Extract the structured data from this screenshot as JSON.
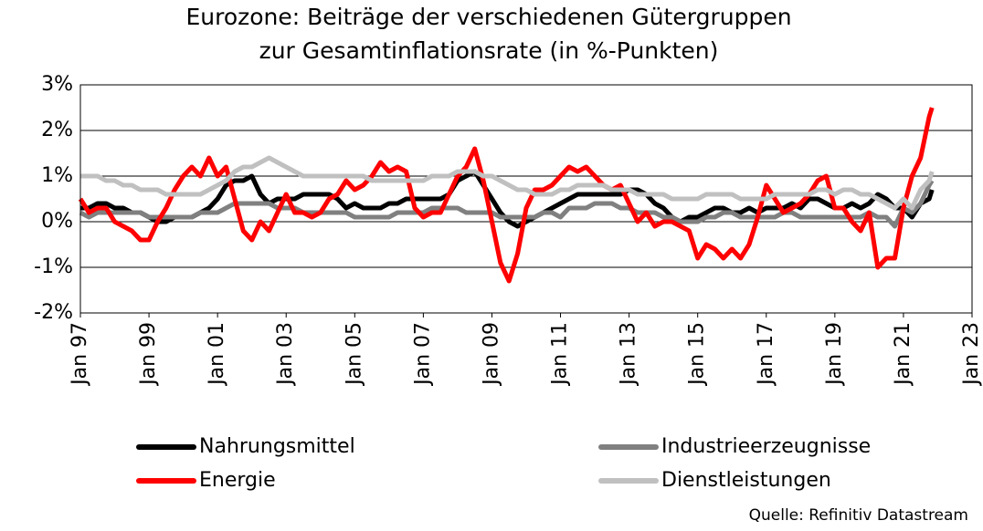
{
  "chart_data": {
    "type": "line",
    "title": [
      "Eurozone: Beiträge der verschiedenen Gütergruppen",
      "zur Gesamtinflationsrate (in %-Punkten)"
    ],
    "source": "Quelle: Refinitiv Datastream",
    "x": [
      "1997-01",
      "1997-04",
      "1997-07",
      "1997-10",
      "1998-01",
      "1998-04",
      "1998-07",
      "1998-10",
      "1999-01",
      "1999-04",
      "1999-07",
      "1999-10",
      "2000-01",
      "2000-04",
      "2000-07",
      "2000-10",
      "2001-01",
      "2001-04",
      "2001-07",
      "2001-10",
      "2002-01",
      "2002-04",
      "2002-07",
      "2002-10",
      "2003-01",
      "2003-04",
      "2003-07",
      "2003-10",
      "2004-01",
      "2004-04",
      "2004-07",
      "2004-10",
      "2005-01",
      "2005-04",
      "2005-07",
      "2005-10",
      "2006-01",
      "2006-04",
      "2006-07",
      "2006-10",
      "2007-01",
      "2007-04",
      "2007-07",
      "2007-10",
      "2008-01",
      "2008-04",
      "2008-07",
      "2008-10",
      "2009-01",
      "2009-04",
      "2009-07",
      "2009-10",
      "2010-01",
      "2010-04",
      "2010-07",
      "2010-10",
      "2011-01",
      "2011-04",
      "2011-07",
      "2011-10",
      "2012-01",
      "2012-04",
      "2012-07",
      "2012-10",
      "2013-01",
      "2013-04",
      "2013-07",
      "2013-10",
      "2014-01",
      "2014-04",
      "2014-07",
      "2014-10",
      "2015-01",
      "2015-04",
      "2015-07",
      "2015-10",
      "2016-01",
      "2016-04",
      "2016-07",
      "2016-10",
      "2017-01",
      "2017-04",
      "2017-07",
      "2017-10",
      "2018-01",
      "2018-04",
      "2018-07",
      "2018-10",
      "2019-01",
      "2019-04",
      "2019-07",
      "2019-10",
      "2020-01",
      "2020-04",
      "2020-07",
      "2020-10",
      "2021-01",
      "2021-04",
      "2021-07",
      "2021-10",
      "2021-11"
    ],
    "series": [
      {
        "name": "Nahrungsmittel",
        "color": "#000000",
        "values": [
          0.3,
          0.3,
          0.4,
          0.4,
          0.3,
          0.3,
          0.2,
          0.2,
          0.1,
          0.0,
          0.0,
          0.1,
          0.1,
          0.1,
          0.2,
          0.3,
          0.5,
          0.8,
          0.9,
          0.9,
          1.0,
          0.6,
          0.4,
          0.5,
          0.5,
          0.5,
          0.6,
          0.6,
          0.6,
          0.6,
          0.5,
          0.3,
          0.4,
          0.3,
          0.3,
          0.3,
          0.4,
          0.4,
          0.5,
          0.5,
          0.5,
          0.5,
          0.5,
          0.6,
          0.9,
          1.0,
          1.1,
          0.8,
          0.5,
          0.2,
          0.0,
          -0.1,
          0.0,
          0.1,
          0.2,
          0.3,
          0.4,
          0.5,
          0.6,
          0.6,
          0.6,
          0.6,
          0.6,
          0.6,
          0.7,
          0.7,
          0.6,
          0.4,
          0.3,
          0.1,
          0.0,
          0.1,
          0.1,
          0.2,
          0.3,
          0.3,
          0.2,
          0.2,
          0.3,
          0.2,
          0.3,
          0.3,
          0.3,
          0.4,
          0.3,
          0.5,
          0.5,
          0.4,
          0.3,
          0.3,
          0.4,
          0.3,
          0.4,
          0.6,
          0.5,
          0.3,
          0.3,
          0.1,
          0.4,
          0.5,
          0.7
        ]
      },
      {
        "name": "Industrieerzeugnisse",
        "color": "#808080",
        "values": [
          0.2,
          0.1,
          0.2,
          0.2,
          0.2,
          0.2,
          0.2,
          0.2,
          0.1,
          0.1,
          0.1,
          0.1,
          0.1,
          0.1,
          0.2,
          0.2,
          0.2,
          0.3,
          0.4,
          0.4,
          0.4,
          0.4,
          0.4,
          0.3,
          0.3,
          0.3,
          0.2,
          0.2,
          0.2,
          0.2,
          0.2,
          0.2,
          0.1,
          0.1,
          0.1,
          0.1,
          0.1,
          0.2,
          0.2,
          0.2,
          0.2,
          0.3,
          0.3,
          0.3,
          0.3,
          0.2,
          0.2,
          0.2,
          0.2,
          0.1,
          0.1,
          0.1,
          0.1,
          0.1,
          0.2,
          0.2,
          0.1,
          0.3,
          0.3,
          0.3,
          0.4,
          0.4,
          0.4,
          0.3,
          0.3,
          0.2,
          0.2,
          0.2,
          0.1,
          0.1,
          0.0,
          0.0,
          0.0,
          0.1,
          0.1,
          0.2,
          0.2,
          0.1,
          0.1,
          0.1,
          0.1,
          0.1,
          0.2,
          0.2,
          0.1,
          0.1,
          0.1,
          0.1,
          0.1,
          0.1,
          0.1,
          0.1,
          0.2,
          0.1,
          0.1,
          -0.1,
          0.3,
          0.2,
          0.4,
          0.8,
          0.9
        ]
      },
      {
        "name": "Energie",
        "color": "#ff0000",
        "values": [
          0.5,
          0.2,
          0.3,
          0.3,
          0.0,
          -0.1,
          -0.2,
          -0.4,
          -0.4,
          0.0,
          0.3,
          0.7,
          1.0,
          1.2,
          1.0,
          1.4,
          1.0,
          1.2,
          0.5,
          -0.2,
          -0.4,
          0.0,
          -0.2,
          0.2,
          0.6,
          0.2,
          0.2,
          0.1,
          0.2,
          0.5,
          0.6,
          0.9,
          0.7,
          0.8,
          1.0,
          1.3,
          1.1,
          1.2,
          1.1,
          0.3,
          0.1,
          0.2,
          0.2,
          0.6,
          1.0,
          1.2,
          1.6,
          0.9,
          0.0,
          -0.9,
          -1.3,
          -0.7,
          0.3,
          0.7,
          0.7,
          0.8,
          1.0,
          1.2,
          1.1,
          1.2,
          1.0,
          0.8,
          0.7,
          0.8,
          0.4,
          0.0,
          0.2,
          -0.1,
          0.0,
          0.0,
          -0.1,
          -0.2,
          -0.8,
          -0.5,
          -0.6,
          -0.8,
          -0.6,
          -0.8,
          -0.5,
          0.1,
          0.8,
          0.5,
          0.2,
          0.3,
          0.4,
          0.6,
          0.9,
          1.0,
          0.3,
          0.3,
          0.0,
          -0.2,
          0.2,
          -1.0,
          -0.8,
          -0.8,
          0.3,
          1.0,
          1.4,
          2.3,
          2.5
        ]
      },
      {
        "name": "Dienstleistungen",
        "color": "#c0c0c0",
        "values": [
          1.0,
          1.0,
          1.0,
          0.9,
          0.9,
          0.8,
          0.8,
          0.7,
          0.7,
          0.7,
          0.6,
          0.6,
          0.6,
          0.6,
          0.6,
          0.7,
          0.8,
          0.9,
          1.1,
          1.2,
          1.2,
          1.3,
          1.4,
          1.3,
          1.2,
          1.1,
          1.0,
          1.0,
          1.0,
          1.0,
          1.0,
          1.0,
          1.0,
          1.0,
          0.9,
          0.9,
          0.9,
          0.9,
          0.9,
          0.9,
          0.9,
          1.0,
          1.0,
          1.0,
          1.1,
          1.1,
          1.1,
          1.0,
          1.0,
          0.9,
          0.8,
          0.7,
          0.7,
          0.6,
          0.6,
          0.6,
          0.7,
          0.7,
          0.8,
          0.8,
          0.8,
          0.8,
          0.7,
          0.7,
          0.7,
          0.6,
          0.6,
          0.6,
          0.6,
          0.5,
          0.5,
          0.5,
          0.5,
          0.6,
          0.6,
          0.6,
          0.6,
          0.5,
          0.5,
          0.5,
          0.5,
          0.6,
          0.6,
          0.6,
          0.6,
          0.6,
          0.7,
          0.7,
          0.6,
          0.7,
          0.7,
          0.6,
          0.6,
          0.5,
          0.4,
          0.3,
          0.5,
          0.3,
          0.7,
          0.9,
          1.1
        ]
      }
    ],
    "xlim": [
      "1997-01",
      "2023-01"
    ],
    "xticks": [
      {
        "value": "1997-01",
        "label": "Jan 97"
      },
      {
        "value": "1999-01",
        "label": "Jan 99"
      },
      {
        "value": "2001-01",
        "label": "Jan 01"
      },
      {
        "value": "2003-01",
        "label": "Jan 03"
      },
      {
        "value": "2005-01",
        "label": "Jan 05"
      },
      {
        "value": "2007-01",
        "label": "Jan 07"
      },
      {
        "value": "2009-01",
        "label": "Jan 09"
      },
      {
        "value": "2011-01",
        "label": "Jan 11"
      },
      {
        "value": "2013-01",
        "label": "Jan 13"
      },
      {
        "value": "2015-01",
        "label": "Jan 15"
      },
      {
        "value": "2017-01",
        "label": "Jan 17"
      },
      {
        "value": "2019-01",
        "label": "Jan 19"
      },
      {
        "value": "2021-01",
        "label": "Jan 21"
      },
      {
        "value": "2023-01",
        "label": "Jan 23"
      }
    ],
    "ylim": [
      -2,
      3
    ],
    "yticks": [
      {
        "value": -2,
        "label": "-2%"
      },
      {
        "value": -1,
        "label": "-1%"
      },
      {
        "value": 0,
        "label": "0%"
      },
      {
        "value": 1,
        "label": "1%"
      },
      {
        "value": 2,
        "label": "2%"
      },
      {
        "value": 3,
        "label": "3%"
      }
    ],
    "grid": true
  }
}
